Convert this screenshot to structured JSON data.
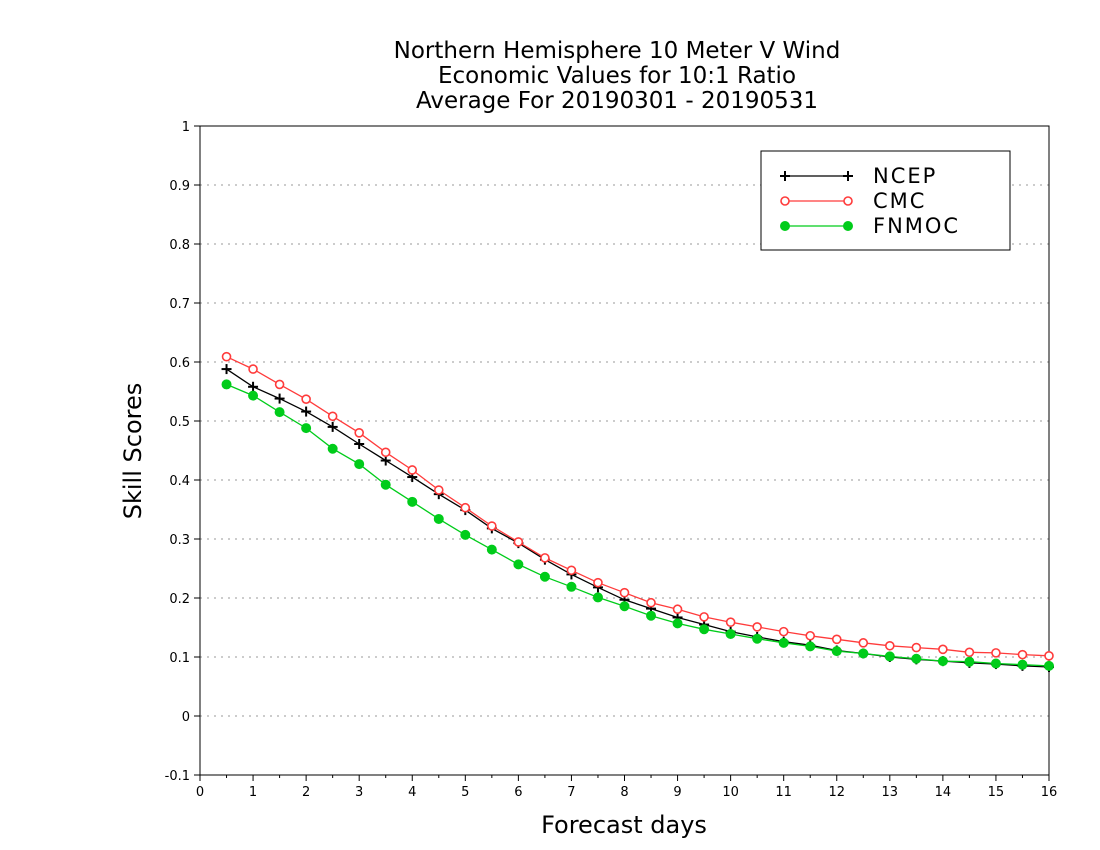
{
  "chart_data": {
    "type": "line",
    "title": [
      "Northern Hemisphere 10 Meter V Wind",
      "Economic Values for 10:1 Ratio",
      "Average For 20190301 - 20190531"
    ],
    "xlabel": "Forecast days",
    "ylabel": "Skill Scores",
    "xlim": [
      0,
      16
    ],
    "ylim": [
      -0.1,
      1
    ],
    "xticks": [
      0,
      1,
      2,
      3,
      4,
      5,
      6,
      7,
      8,
      9,
      10,
      11,
      12,
      13,
      14,
      15,
      16
    ],
    "yticks": [
      -0.1,
      0,
      0.1,
      0.2,
      0.3,
      0.4,
      0.5,
      0.6,
      0.7,
      0.8,
      0.9,
      1
    ],
    "ytick_labels": [
      "-0.1",
      "0",
      "0.1",
      "0.2",
      "0.3",
      "0.4",
      "0.5",
      "0.6",
      "0.7",
      "0.8",
      "0.9",
      "1"
    ],
    "grid": "horizontal dotted",
    "legend_position": "top-right",
    "x": [
      0.5,
      1,
      1.5,
      2,
      2.5,
      3,
      3.5,
      4,
      4.5,
      5,
      5.5,
      6,
      6.5,
      7,
      7.5,
      8,
      8.5,
      9,
      9.5,
      10,
      10.5,
      11,
      11.5,
      12,
      12.5,
      13,
      13.5,
      14,
      14.5,
      15,
      15.5,
      16
    ],
    "series": [
      {
        "name": "NCEP",
        "color": "#000000",
        "marker": "plus",
        "values": [
          0.588,
          0.558,
          0.538,
          0.516,
          0.49,
          0.461,
          0.433,
          0.405,
          0.376,
          0.349,
          0.318,
          0.293,
          0.265,
          0.24,
          0.218,
          0.197,
          0.182,
          0.167,
          0.155,
          0.143,
          0.134,
          0.126,
          0.12,
          0.111,
          0.106,
          0.1,
          0.096,
          0.093,
          0.09,
          0.088,
          0.085,
          0.083
        ]
      },
      {
        "name": "CMC",
        "color": "#ff3b3b",
        "marker": "open-circle",
        "values": [
          0.609,
          0.588,
          0.562,
          0.537,
          0.508,
          0.48,
          0.447,
          0.417,
          0.383,
          0.353,
          0.322,
          0.295,
          0.268,
          0.247,
          0.226,
          0.209,
          0.192,
          0.181,
          0.168,
          0.159,
          0.151,
          0.143,
          0.136,
          0.13,
          0.124,
          0.119,
          0.116,
          0.113,
          0.108,
          0.107,
          0.104,
          0.102
        ]
      },
      {
        "name": "FNMOC",
        "color": "#00cc1a",
        "marker": "filled-circle",
        "values": [
          0.562,
          0.543,
          0.515,
          0.488,
          0.453,
          0.427,
          0.392,
          0.363,
          0.334,
          0.307,
          0.282,
          0.257,
          0.236,
          0.219,
          0.201,
          0.186,
          0.17,
          0.157,
          0.147,
          0.139,
          0.131,
          0.124,
          0.118,
          0.11,
          0.106,
          0.101,
          0.097,
          0.093,
          0.092,
          0.089,
          0.087,
          0.085
        ]
      }
    ]
  }
}
